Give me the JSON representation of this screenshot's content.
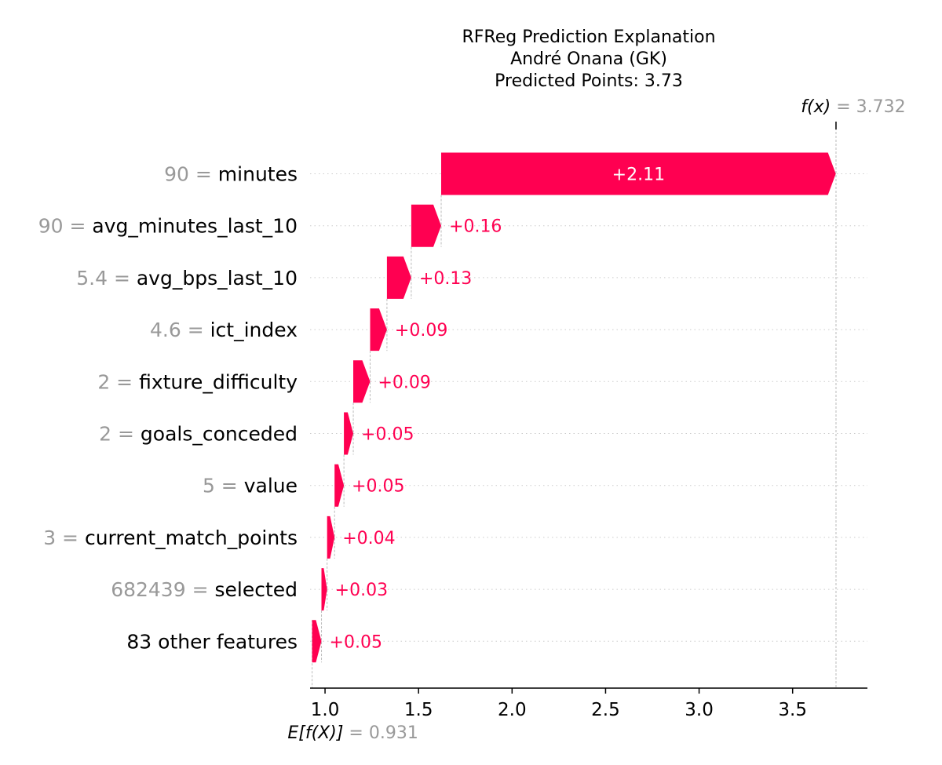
{
  "chart_data": {
    "type": "waterfall",
    "title": [
      "RFReg Prediction Explanation",
      "André Onana (GK)",
      "Predicted Points: 3.73"
    ],
    "base_value": 0.931,
    "base_label": "E[f(X)]",
    "base_value_text": "0.931",
    "output_value": 3.732,
    "output_label": "f(x)",
    "output_value_text": "3.732",
    "xlim": [
      0.92,
      3.9
    ],
    "xticks": [
      1.0,
      1.5,
      2.0,
      2.5,
      3.0,
      3.5
    ],
    "xtick_labels": [
      "1.0",
      "1.5",
      "2.0",
      "2.5",
      "3.0",
      "3.5"
    ],
    "grid": "horizontal dotted",
    "colors": {
      "positive": "#ff0051",
      "value_text": "#999999",
      "label_text": "#000000",
      "connector": "#bbbbbb"
    },
    "features": [
      {
        "value": "90",
        "name": "minutes",
        "contribution": 2.11,
        "label": "+2.11"
      },
      {
        "value": "90",
        "name": "avg_minutes_last_10",
        "contribution": 0.16,
        "label": "+0.16"
      },
      {
        "value": "5.4",
        "name": "avg_bps_last_10",
        "contribution": 0.13,
        "label": "+0.13"
      },
      {
        "value": "4.6",
        "name": "ict_index",
        "contribution": 0.09,
        "label": "+0.09"
      },
      {
        "value": "2",
        "name": "fixture_difficulty",
        "contribution": 0.09,
        "label": "+0.09"
      },
      {
        "value": "2",
        "name": "goals_conceded",
        "contribution": 0.05,
        "label": "+0.05"
      },
      {
        "value": "5",
        "name": "value",
        "contribution": 0.05,
        "label": "+0.05"
      },
      {
        "value": "3",
        "name": "current_match_points",
        "contribution": 0.04,
        "label": "+0.04"
      },
      {
        "value": "682439",
        "name": "selected",
        "contribution": 0.03,
        "label": "+0.03"
      },
      {
        "value": "",
        "name": "83 other features",
        "contribution": 0.05,
        "label": "+0.05"
      }
    ]
  }
}
